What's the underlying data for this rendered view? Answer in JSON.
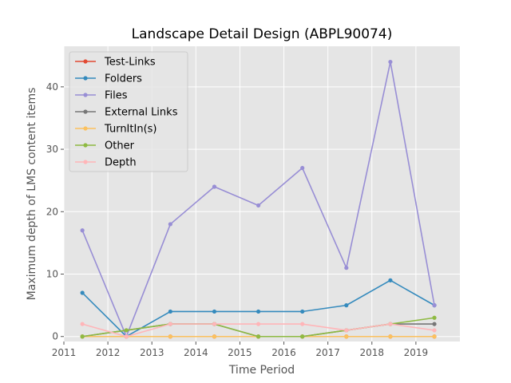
{
  "chart_data": {
    "type": "line",
    "title": "Landscape Detail Design (ABPL90074)",
    "xlabel": "Time Period",
    "ylabel": "Maximum depth of LMS content items",
    "xlim": [
      2011,
      2020
    ],
    "ylim": [
      -0.8,
      46.5
    ],
    "x_ticks": [
      2011,
      2012,
      2013,
      2014,
      2015,
      2016,
      2017,
      2018,
      2019
    ],
    "y_ticks": [
      0,
      10,
      20,
      30,
      40
    ],
    "grid": true,
    "legend_position": "top-left",
    "x": [
      2011.42,
      2012.42,
      2013.42,
      2014.42,
      2015.42,
      2016.42,
      2017.42,
      2018.42,
      2019.42
    ],
    "series": [
      {
        "name": "Test-Links",
        "color": "#E24A33",
        "values": [
          0,
          0,
          0,
          0,
          0,
          0,
          0,
          0,
          0
        ]
      },
      {
        "name": "Folders",
        "color": "#348ABD",
        "values": [
          7,
          0,
          4,
          4,
          4,
          4,
          5,
          9,
          5
        ]
      },
      {
        "name": "Files",
        "color": "#988ED5",
        "values": [
          17,
          0,
          18,
          24,
          21,
          27,
          11,
          44,
          5
        ]
      },
      {
        "name": "External Links",
        "color": "#777777",
        "values": [
          0,
          1,
          2,
          2,
          0,
          0,
          1,
          2,
          2
        ]
      },
      {
        "name": "TurnItIn(s)",
        "color": "#FBC15E",
        "values": [
          0,
          0,
          0,
          0,
          0,
          0,
          0,
          0,
          0
        ]
      },
      {
        "name": "Other",
        "color": "#8EBA42",
        "values": [
          0,
          1,
          2,
          2,
          0,
          0,
          1,
          2,
          3
        ]
      },
      {
        "name": "Depth",
        "color": "#FFB5B8",
        "values": [
          2,
          0,
          2,
          2,
          2,
          2,
          1,
          2,
          1
        ]
      }
    ]
  }
}
